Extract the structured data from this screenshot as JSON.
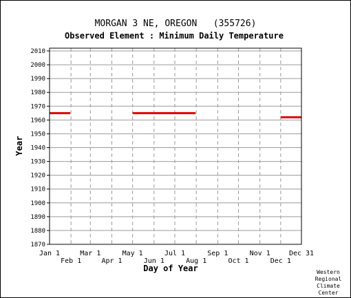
{
  "chart_data": {
    "type": "line",
    "title": "MORGAN 3 NE, OREGON   (355726)",
    "subtitle": "Observed Element : Minimum Daily Temperature",
    "xlabel": "Day of Year",
    "ylabel": "Year",
    "xlim": [
      1,
      365
    ],
    "ylim": [
      1870,
      2012
    ],
    "x_ticks": [
      {
        "label": "Jan 1",
        "day": 1,
        "row": 0
      },
      {
        "label": "Feb 1",
        "day": 32,
        "row": 1
      },
      {
        "label": "Mar 1",
        "day": 60,
        "row": 0
      },
      {
        "label": "Apr 1",
        "day": 91,
        "row": 1
      },
      {
        "label": "May 1",
        "day": 121,
        "row": 0
      },
      {
        "label": "Jun 1",
        "day": 152,
        "row": 1
      },
      {
        "label": "Jul 1",
        "day": 182,
        "row": 0
      },
      {
        "label": "Aug 1",
        "day": 213,
        "row": 1
      },
      {
        "label": "Sep 1",
        "day": 244,
        "row": 0
      },
      {
        "label": "Oct 1",
        "day": 274,
        "row": 1
      },
      {
        "label": "Nov 1",
        "day": 305,
        "row": 0
      },
      {
        "label": "Dec 1",
        "day": 335,
        "row": 1
      },
      {
        "label": "Dec 31",
        "day": 365,
        "row": 0
      }
    ],
    "y_ticks": [
      1870,
      1880,
      1890,
      1900,
      1910,
      1920,
      1930,
      1940,
      1950,
      1960,
      1970,
      1980,
      1990,
      2000,
      2010
    ],
    "grid": true,
    "series_color": "#e00000",
    "segments": [
      {
        "year": 1965,
        "start_day": 1,
        "end_day": 31
      },
      {
        "year": 1965,
        "start_day": 121,
        "end_day": 212
      },
      {
        "year": 1962,
        "start_day": 335,
        "end_day": 365
      }
    ]
  },
  "footer": {
    "credit_lines": [
      "Western",
      "Regional",
      "Climate",
      "Center"
    ]
  }
}
